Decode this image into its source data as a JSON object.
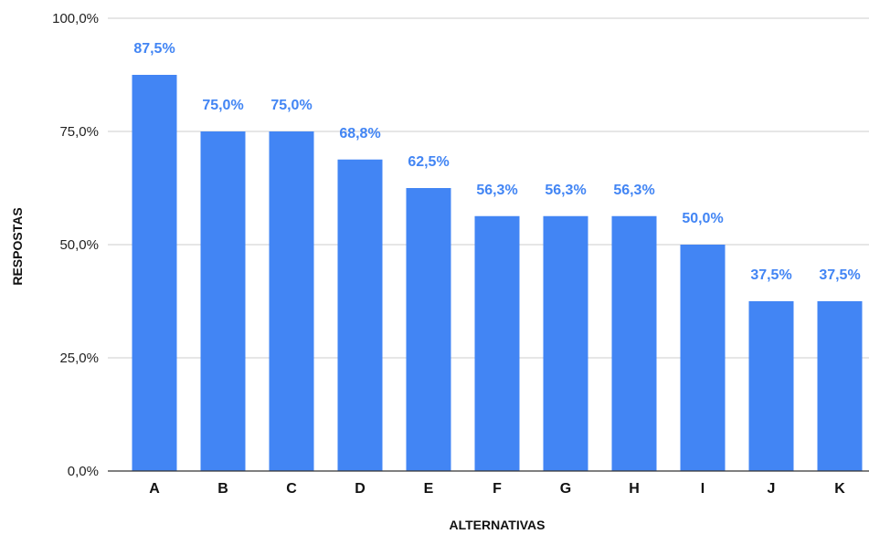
{
  "chart_data": {
    "type": "bar",
    "title": "",
    "xlabel": "ALTERNATIVAS",
    "ylabel": "RESPOSTAS",
    "categories": [
      "A",
      "B",
      "C",
      "D",
      "E",
      "F",
      "G",
      "H",
      "I",
      "J",
      "K"
    ],
    "values": [
      87.5,
      75.0,
      75.0,
      68.8,
      62.5,
      56.3,
      56.3,
      56.3,
      50.0,
      37.5,
      37.5
    ],
    "value_labels": [
      "87,5%",
      "75,0%",
      "75,0%",
      "68,8%",
      "62,5%",
      "56,3%",
      "56,3%",
      "56,3%",
      "50,0%",
      "37,5%",
      "37,5%"
    ],
    "ylim": [
      0,
      100
    ],
    "yticks": [
      0,
      25,
      50,
      75,
      100
    ],
    "ytick_labels": [
      "0,0%",
      "25,0%",
      "50,0%",
      "75,0%",
      "100,0%"
    ],
    "grid": true,
    "legend": "none",
    "colors": {
      "bar": "#4285f4",
      "data_label": "#4285f4",
      "grid": "#cccccc",
      "axis": "#333333"
    }
  }
}
